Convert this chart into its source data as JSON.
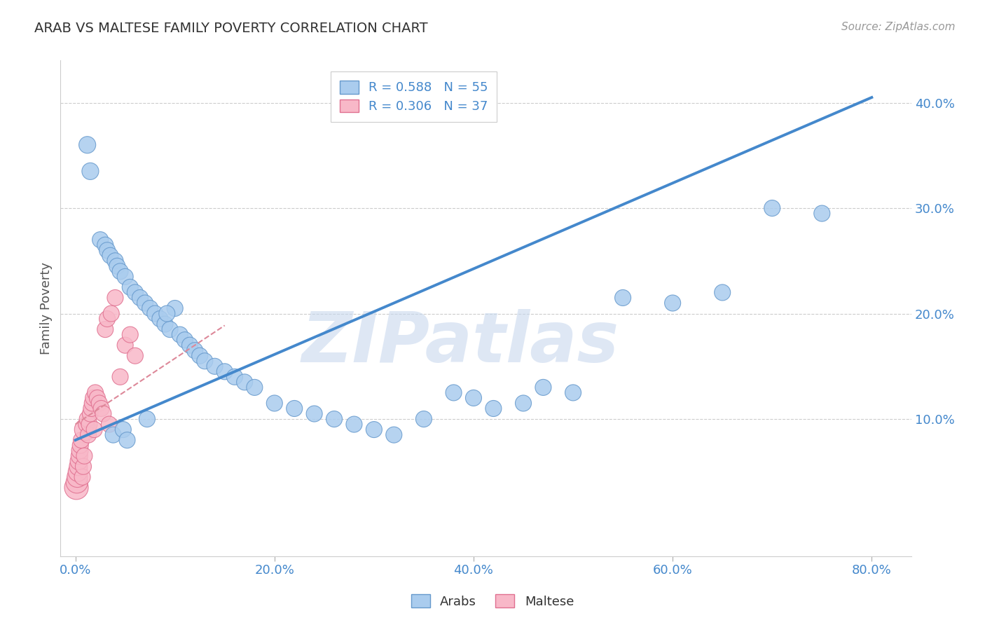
{
  "title": "ARAB VS MALTESE FAMILY POVERTY CORRELATION CHART",
  "source": "Source: ZipAtlas.com",
  "xlabel_ticks": [
    "0.0%",
    "20.0%",
    "40.0%",
    "60.0%",
    "80.0%"
  ],
  "xlabel_vals": [
    0,
    20,
    40,
    60,
    80
  ],
  "ylabel_ticks": [
    "10.0%",
    "20.0%",
    "30.0%",
    "40.0%"
  ],
  "ylabel_vals": [
    10,
    20,
    30,
    40
  ],
  "xlim": [
    -1.5,
    84
  ],
  "ylim": [
    -3,
    44
  ],
  "arab_color": "#aaccee",
  "arab_edge_color": "#6699cc",
  "maltese_color": "#f8b8c8",
  "maltese_edge_color": "#e07090",
  "regression_arab_color": "#4488cc",
  "regression_maltese_color": "#dd8899",
  "legend_arab_label": "R = 0.588   N = 55",
  "legend_maltese_label": "R = 0.306   N = 37",
  "legend_label_arab": "Arabs",
  "legend_label_maltese": "Maltese",
  "ylabel": "Family Poverty",
  "watermark": "ZIPatlas",
  "watermark_color": "#c8d8ee",
  "background_color": "#ffffff",
  "grid_color": "#cccccc",
  "arab_regression_x0": 0,
  "arab_regression_y0": 8.0,
  "arab_regression_x1": 80,
  "arab_regression_y1": 40.5,
  "maltese_regression_x0": 0,
  "maltese_regression_y0": 9.5,
  "maltese_regression_x1": 8,
  "maltese_regression_y1": 14.5,
  "arab_x": [
    1.2,
    1.5,
    2.5,
    3.0,
    3.2,
    3.5,
    4.0,
    4.2,
    4.5,
    5.0,
    5.5,
    6.0,
    6.5,
    7.0,
    7.5,
    8.0,
    8.5,
    9.0,
    9.5,
    10.0,
    10.5,
    11.0,
    11.5,
    12.0,
    12.5,
    13.0,
    14.0,
    15.0,
    16.0,
    17.0,
    18.0,
    20.0,
    22.0,
    24.0,
    26.0,
    28.0,
    30.0,
    32.0,
    35.0,
    38.0,
    40.0,
    42.0,
    45.0,
    47.0,
    50.0,
    55.0,
    60.0,
    65.0,
    70.0,
    75.0,
    3.8,
    4.8,
    5.2,
    7.2,
    9.2
  ],
  "arab_y": [
    36.0,
    33.5,
    27.0,
    26.5,
    26.0,
    25.5,
    25.0,
    24.5,
    24.0,
    23.5,
    22.5,
    22.0,
    21.5,
    21.0,
    20.5,
    20.0,
    19.5,
    19.0,
    18.5,
    20.5,
    18.0,
    17.5,
    17.0,
    16.5,
    16.0,
    15.5,
    15.0,
    14.5,
    14.0,
    13.5,
    13.0,
    11.5,
    11.0,
    10.5,
    10.0,
    9.5,
    9.0,
    8.5,
    10.0,
    12.5,
    12.0,
    11.0,
    11.5,
    13.0,
    12.5,
    21.5,
    21.0,
    22.0,
    30.0,
    29.5,
    8.5,
    9.0,
    8.0,
    10.0,
    20.0
  ],
  "arab_sizes": [
    60,
    60,
    55,
    55,
    55,
    55,
    55,
    55,
    55,
    55,
    55,
    55,
    55,
    55,
    55,
    55,
    55,
    55,
    55,
    55,
    55,
    55,
    55,
    55,
    55,
    55,
    55,
    55,
    55,
    55,
    55,
    55,
    55,
    55,
    55,
    55,
    55,
    55,
    55,
    55,
    55,
    55,
    55,
    55,
    55,
    55,
    55,
    55,
    55,
    55,
    55,
    55,
    55,
    55,
    55
  ],
  "maltese_x": [
    0.1,
    0.15,
    0.2,
    0.25,
    0.3,
    0.35,
    0.4,
    0.45,
    0.5,
    0.6,
    0.7,
    0.8,
    0.9,
    1.0,
    1.1,
    1.2,
    1.3,
    1.4,
    1.5,
    1.6,
    1.7,
    1.8,
    1.9,
    2.0,
    2.2,
    2.4,
    2.6,
    2.8,
    3.0,
    3.2,
    3.4,
    3.6,
    4.0,
    4.5,
    5.0,
    5.5,
    6.0
  ],
  "maltese_y": [
    3.5,
    4.0,
    4.5,
    5.0,
    5.5,
    6.0,
    6.5,
    7.0,
    7.5,
    8.0,
    4.5,
    5.5,
    6.5,
    9.0,
    9.5,
    10.0,
    8.5,
    9.5,
    10.5,
    11.0,
    11.5,
    12.0,
    9.0,
    12.5,
    12.0,
    11.5,
    11.0,
    10.5,
    18.5,
    19.5,
    9.5,
    20.0,
    21.5,
    14.0,
    17.0,
    18.0,
    16.0
  ],
  "maltese_sizes": [
    120,
    100,
    90,
    80,
    70,
    65,
    60,
    60,
    55,
    55,
    55,
    55,
    55,
    100,
    55,
    55,
    55,
    55,
    55,
    55,
    55,
    55,
    55,
    55,
    55,
    55,
    55,
    55,
    55,
    55,
    55,
    55,
    55,
    55,
    55,
    55,
    55
  ]
}
